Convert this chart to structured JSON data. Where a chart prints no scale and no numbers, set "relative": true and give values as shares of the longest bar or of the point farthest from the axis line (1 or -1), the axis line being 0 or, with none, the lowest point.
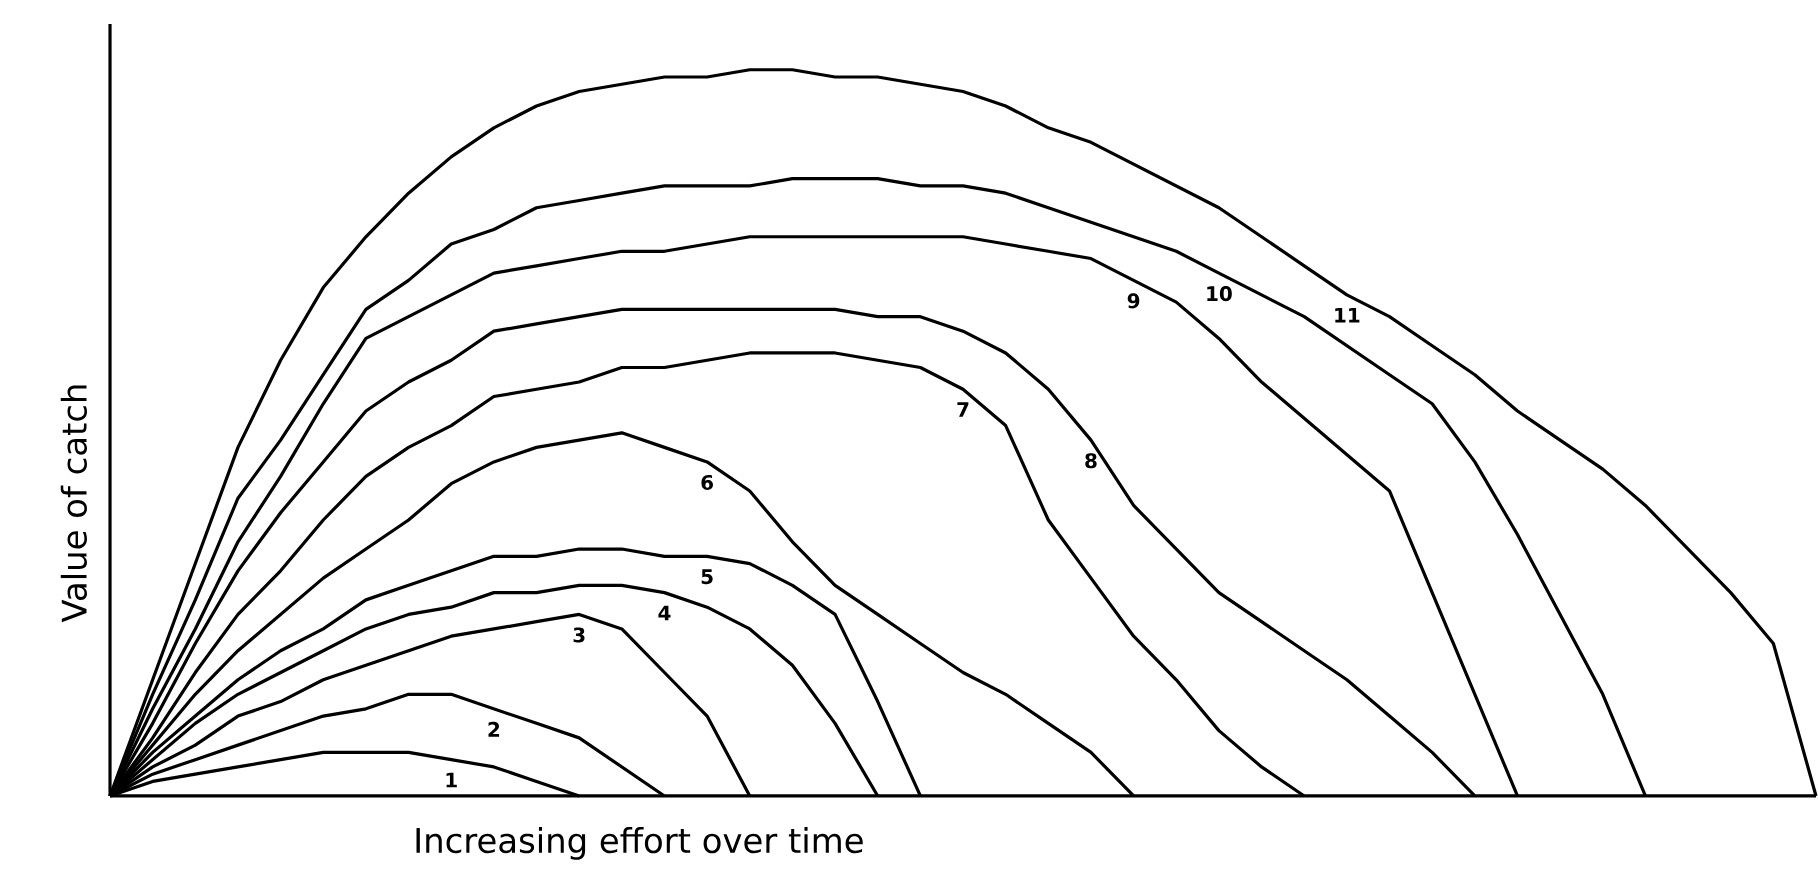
{
  "chart_data": {
    "type": "line",
    "xlabel": "Increasing effort over time",
    "ylabel": "Value of catch",
    "relative": true,
    "categories": [
      null,
      null,
      null,
      null,
      null,
      null,
      null,
      null,
      null,
      null,
      null,
      null,
      null,
      null,
      null,
      null,
      null,
      null,
      null,
      null,
      null,
      null,
      null,
      null,
      null,
      null,
      null,
      null,
      null,
      null,
      null,
      null,
      null,
      null,
      null,
      null,
      null,
      null,
      null,
      null,
      null
    ],
    "series": [
      {
        "name": "1",
        "color": "#000000",
        "values": [
          0,
          0.02,
          0.03,
          0.04,
          0.05,
          0.06,
          0.06,
          0.06,
          0.05,
          0.04,
          0.02,
          0,
          null,
          null,
          null,
          null,
          null,
          null,
          null,
          null,
          null,
          null,
          null,
          null,
          null,
          null,
          null,
          null,
          null,
          null,
          null,
          null,
          null,
          null,
          null,
          null,
          null,
          null,
          null,
          null,
          null
        ]
      },
      {
        "name": "2",
        "color": "#000000",
        "values": [
          0,
          0.03,
          0.05,
          0.07,
          0.09,
          0.11,
          0.12,
          0.14,
          0.14,
          0.12,
          0.1,
          0.08,
          0.04,
          0,
          null,
          null,
          null,
          null,
          null,
          null,
          null,
          null,
          null,
          null,
          null,
          null,
          null,
          null,
          null,
          null,
          null,
          null,
          null,
          null,
          null,
          null,
          null,
          null,
          null,
          null,
          null
        ]
      },
      {
        "name": "3",
        "color": "#000000",
        "values": [
          0,
          0.04,
          0.07,
          0.11,
          0.13,
          0.16,
          0.18,
          0.2,
          0.22,
          0.23,
          0.24,
          0.25,
          0.23,
          0.17,
          0.11,
          0,
          null,
          null,
          null,
          null,
          null,
          null,
          null,
          null,
          null,
          null,
          null,
          null,
          null,
          null,
          null,
          null,
          null,
          null,
          null,
          null,
          null,
          null,
          null,
          null,
          null
        ]
      },
      {
        "name": "4",
        "color": "#000000",
        "values": [
          0,
          0.05,
          0.1,
          0.14,
          0.17,
          0.2,
          0.23,
          0.25,
          0.26,
          0.28,
          0.28,
          0.29,
          0.29,
          0.28,
          0.26,
          0.23,
          0.18,
          0.1,
          0,
          null,
          null,
          null,
          null,
          null,
          null,
          null,
          null,
          null,
          null,
          null,
          null,
          null,
          null,
          null,
          null,
          null,
          null,
          null,
          null,
          null,
          null
        ]
      },
      {
        "name": "5",
        "color": "#000000",
        "values": [
          0,
          0.06,
          0.11,
          0.16,
          0.2,
          0.23,
          0.27,
          0.29,
          0.31,
          0.33,
          0.33,
          0.34,
          0.34,
          0.33,
          0.33,
          0.32,
          0.29,
          0.25,
          0.13,
          0,
          null,
          null,
          null,
          null,
          null,
          null,
          null,
          null,
          null,
          null,
          null,
          null,
          null,
          null,
          null,
          null,
          null,
          null,
          null,
          null,
          null
        ]
      },
      {
        "name": "6",
        "color": "#000000",
        "values": [
          0,
          0.07,
          0.14,
          0.2,
          0.25,
          0.3,
          0.34,
          0.38,
          0.43,
          0.46,
          0.48,
          0.49,
          0.5,
          0.48,
          0.46,
          0.42,
          0.35,
          0.29,
          0.25,
          0.21,
          0.17,
          0.14,
          0.1,
          0.06,
          0,
          null,
          null,
          null,
          null,
          null,
          null,
          null,
          null,
          null,
          null,
          null,
          null,
          null,
          null,
          null,
          null
        ]
      },
      {
        "name": "7",
        "color": "#000000",
        "values": [
          0,
          0.08,
          0.17,
          0.25,
          0.31,
          0.38,
          0.44,
          0.48,
          0.51,
          0.55,
          0.56,
          0.57,
          0.59,
          0.59,
          0.6,
          0.61,
          0.61,
          0.61,
          0.6,
          0.59,
          0.56,
          0.51,
          0.38,
          0.3,
          0.22,
          0.16,
          0.09,
          0.04,
          0,
          null,
          null,
          null,
          null,
          null,
          null,
          null,
          null,
          null,
          null,
          null,
          null
        ]
      },
      {
        "name": "8",
        "color": "#000000",
        "values": [
          0,
          0.1,
          0.21,
          0.31,
          0.39,
          0.46,
          0.53,
          0.57,
          0.6,
          0.64,
          0.65,
          0.66,
          0.67,
          0.67,
          0.67,
          0.67,
          0.67,
          0.67,
          0.66,
          0.66,
          0.64,
          0.61,
          0.56,
          0.49,
          0.4,
          0.34,
          0.28,
          0.24,
          0.2,
          0.16,
          0.11,
          0.06,
          0,
          null,
          null,
          null,
          null,
          null,
          null,
          null,
          null
        ]
      },
      {
        "name": "9",
        "color": "#000000",
        "values": [
          0,
          0.12,
          0.23,
          0.35,
          0.44,
          0.54,
          0.63,
          0.66,
          0.69,
          0.72,
          0.73,
          0.74,
          0.75,
          0.75,
          0.76,
          0.77,
          0.77,
          0.77,
          0.77,
          0.77,
          0.77,
          0.76,
          0.75,
          0.74,
          0.71,
          0.68,
          0.63,
          0.57,
          0.52,
          0.47,
          0.42,
          0.28,
          0.14,
          0,
          null,
          null,
          null,
          null,
          null,
          null,
          null
        ]
      },
      {
        "name": "10",
        "color": "#000000",
        "values": [
          0,
          0.14,
          0.27,
          0.41,
          0.49,
          0.58,
          0.67,
          0.71,
          0.76,
          0.78,
          0.81,
          0.82,
          0.83,
          0.84,
          0.84,
          0.84,
          0.85,
          0.85,
          0.85,
          0.84,
          0.84,
          0.83,
          0.81,
          0.79,
          0.77,
          0.75,
          0.72,
          0.69,
          0.66,
          0.62,
          0.58,
          0.54,
          0.46,
          0.36,
          0.25,
          0.14,
          0,
          null,
          null,
          null,
          null
        ]
      },
      {
        "name": "11",
        "color": "#000000",
        "values": [
          0,
          0.16,
          0.32,
          0.48,
          0.6,
          0.7,
          0.77,
          0.83,
          0.88,
          0.92,
          0.95,
          0.97,
          0.98,
          0.99,
          0.99,
          1.0,
          1.0,
          0.99,
          0.99,
          0.98,
          0.97,
          0.95,
          0.92,
          0.9,
          0.87,
          0.84,
          0.81,
          0.77,
          0.73,
          0.69,
          0.66,
          0.62,
          0.58,
          0.53,
          0.49,
          0.45,
          0.4,
          0.34,
          0.28,
          0.21,
          0
        ]
      }
    ]
  }
}
